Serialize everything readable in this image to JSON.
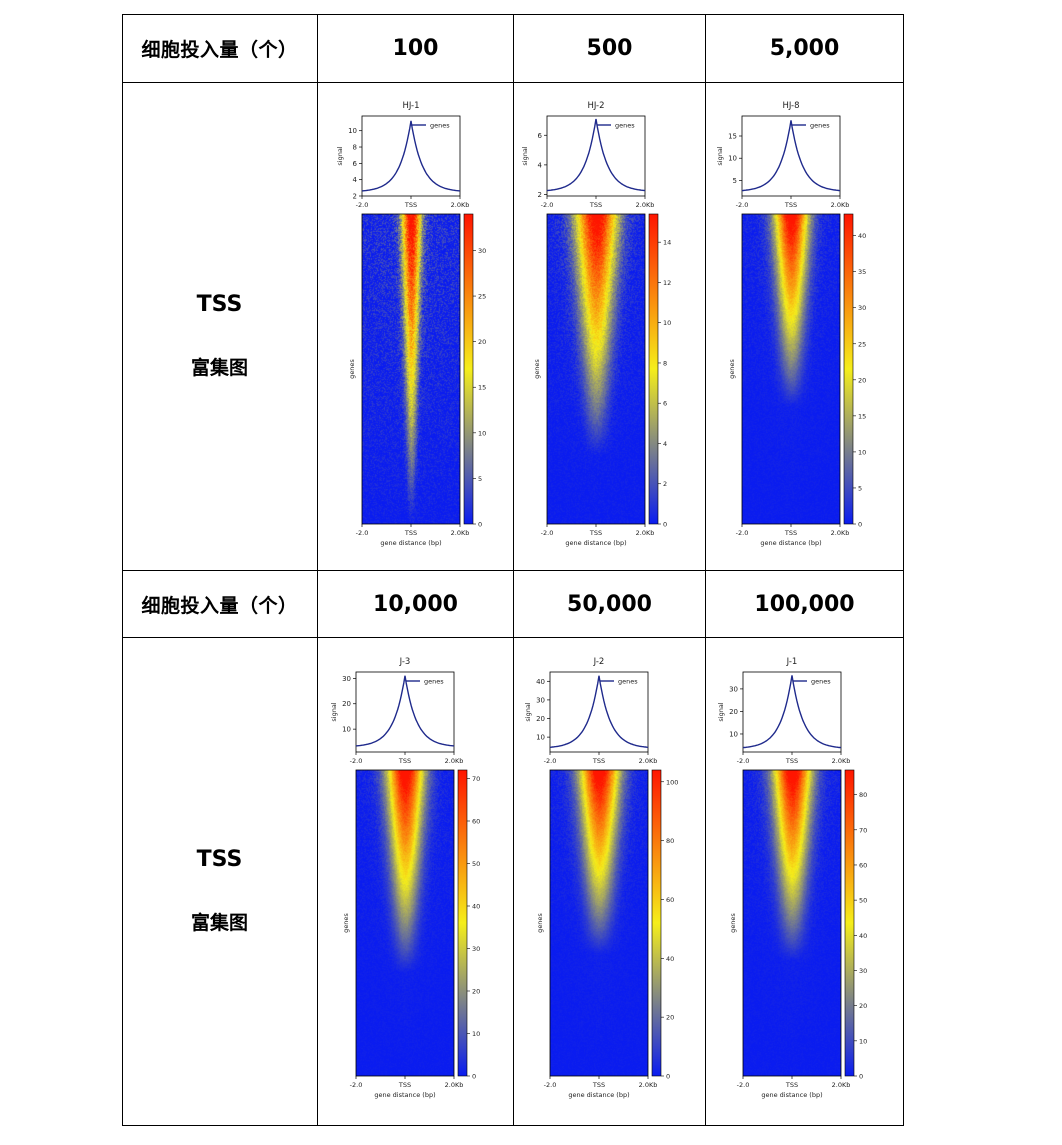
{
  "table": {
    "row1": {
      "label": "细胞投入量（个）",
      "counts": [
        "100",
        "500",
        "5,000"
      ]
    },
    "row2": {
      "label_a": "TSS",
      "label_b": "富集图"
    },
    "row3": {
      "label": "细胞投入量（个）",
      "counts": [
        "10,000",
        "50,000",
        "100,000"
      ]
    },
    "row4": {
      "label_a": "TSS",
      "label_b": "富集图"
    }
  },
  "colors": {
    "profile_line": "#1f2a8c",
    "heatmap_low": "#0a1cf0",
    "heatmap_mid": "#f5ee1a",
    "heatmap_high": "#ff1500"
  },
  "chart_data": [
    {
      "type": "heatmap",
      "title": "HJ-1",
      "profile": {
        "ylabel": "signal",
        "yticks": [
          2,
          4,
          6,
          8,
          10
        ],
        "ylim": [
          2,
          11.8
        ],
        "legend": "genes",
        "peak": 11.2,
        "base": 2.5,
        "x": [
          -2000,
          -1500,
          -1000,
          -500,
          -250,
          0,
          250,
          500,
          1000,
          1500,
          2000
        ],
        "y": [
          2.5,
          3.0,
          3.7,
          5.3,
          7.2,
          11.2,
          7.2,
          5.3,
          3.7,
          3.0,
          2.5
        ]
      },
      "xticks": [
        "-2.0",
        "TSS",
        "2.0Kb"
      ],
      "xlabel": "gene distance (bp)",
      "heat_ylabel": "genes",
      "colorbar": {
        "max": 34,
        "ticks": [
          0,
          5,
          10,
          15,
          20,
          25,
          30
        ]
      },
      "enrichment_shape": {
        "top_width": 0.12,
        "fade_at": 1.0,
        "noise": 0.6
      }
    },
    {
      "type": "heatmap",
      "title": "HJ-2",
      "profile": {
        "ylabel": "signal",
        "yticks": [
          2,
          4,
          6
        ],
        "ylim": [
          1.9,
          7.3
        ],
        "legend": "genes",
        "x": [
          -2000,
          -1500,
          -1000,
          -500,
          -250,
          0,
          250,
          500,
          1000,
          1500,
          2000
        ],
        "y": [
          2.2,
          2.5,
          3.0,
          4.0,
          5.0,
          7.1,
          5.0,
          4.0,
          3.0,
          2.5,
          2.2
        ]
      },
      "xticks": [
        "-2.0",
        "TSS",
        "2.0Kb"
      ],
      "xlabel": "gene distance (bp)",
      "heat_ylabel": "genes",
      "colorbar": {
        "max": 15.4,
        "ticks": [
          0,
          2,
          4,
          6,
          8,
          10,
          12,
          14
        ]
      },
      "enrichment_shape": {
        "top_width": 0.28,
        "fade_at": 0.78,
        "noise": 0.35
      }
    },
    {
      "type": "heatmap",
      "title": "HJ-8",
      "profile": {
        "ylabel": "signal",
        "yticks": [
          5,
          10,
          15
        ],
        "ylim": [
          1.5,
          19.5
        ],
        "legend": "genes",
        "x": [
          -2000,
          -1500,
          -1000,
          -500,
          -250,
          0,
          250,
          500,
          1000,
          1500,
          2000
        ],
        "y": [
          2.5,
          3.5,
          5.0,
          8.0,
          11.5,
          18.5,
          11.5,
          8.0,
          5.0,
          3.5,
          2.5
        ]
      },
      "xticks": [
        "-2.0",
        "TSS",
        "2.0Kb"
      ],
      "xlabel": "gene distance (bp)",
      "heat_ylabel": "genes",
      "colorbar": {
        "max": 43,
        "ticks": [
          0,
          5,
          10,
          15,
          20,
          25,
          30,
          35,
          40
        ]
      },
      "enrichment_shape": {
        "top_width": 0.22,
        "fade_at": 0.62,
        "noise": 0.25
      }
    },
    {
      "type": "heatmap",
      "title": "J-3",
      "profile": {
        "ylabel": "signal",
        "yticks": [
          10,
          20,
          30
        ],
        "ylim": [
          1,
          32.5
        ],
        "legend": "genes",
        "x": [
          -2000,
          -1500,
          -1000,
          -500,
          -250,
          0,
          250,
          500,
          1000,
          1500,
          2000
        ],
        "y": [
          3.0,
          5.0,
          8.0,
          14.0,
          20.0,
          31.0,
          20.0,
          14.0,
          8.0,
          5.0,
          3.0
        ]
      },
      "xticks": [
        "-2.0",
        "TSS",
        "2.0Kb"
      ],
      "xlabel": "gene distance (bp)",
      "heat_ylabel": "genes",
      "colorbar": {
        "max": 72,
        "ticks": [
          0,
          10,
          20,
          30,
          40,
          50,
          60,
          70
        ]
      },
      "enrichment_shape": {
        "top_width": 0.24,
        "fade_at": 0.66,
        "noise": 0.2
      }
    },
    {
      "type": "heatmap",
      "title": "J-2",
      "profile": {
        "ylabel": "signal",
        "yticks": [
          10,
          20,
          30,
          40
        ],
        "ylim": [
          2,
          45
        ],
        "legend": "genes",
        "x": [
          -2000,
          -1500,
          -1000,
          -500,
          -250,
          0,
          250,
          500,
          1000,
          1500,
          2000
        ],
        "y": [
          4.0,
          6.0,
          10.0,
          18.0,
          27.0,
          43.0,
          27.0,
          18.0,
          10.0,
          6.0,
          4.0
        ]
      },
      "xticks": [
        "-2.0",
        "TSS",
        "2.0Kb"
      ],
      "xlabel": "gene distance (bp)",
      "heat_ylabel": "genes",
      "colorbar": {
        "max": 104,
        "ticks": [
          0,
          20,
          40,
          60,
          80,
          100
        ]
      },
      "enrichment_shape": {
        "top_width": 0.26,
        "fade_at": 0.6,
        "noise": 0.2
      }
    },
    {
      "type": "heatmap",
      "title": "J-1",
      "profile": {
        "ylabel": "signal",
        "yticks": [
          10,
          20,
          30
        ],
        "ylim": [
          2,
          37.5
        ],
        "legend": "genes",
        "x": [
          -2000,
          -1500,
          -1000,
          -500,
          -250,
          0,
          250,
          500,
          1000,
          1500,
          2000
        ],
        "y": [
          3.5,
          5.5,
          9.0,
          15.0,
          23.0,
          36.0,
          23.0,
          15.0,
          9.0,
          5.5,
          3.5
        ]
      },
      "xticks": [
        "-2.0",
        "TSS",
        "2.0Kb"
      ],
      "xlabel": "gene distance (bp)",
      "heat_ylabel": "genes",
      "colorbar": {
        "max": 87,
        "ticks": [
          0,
          10,
          20,
          30,
          40,
          50,
          60,
          70,
          80
        ]
      },
      "enrichment_shape": {
        "top_width": 0.25,
        "fade_at": 0.62,
        "noise": 0.2
      }
    }
  ]
}
